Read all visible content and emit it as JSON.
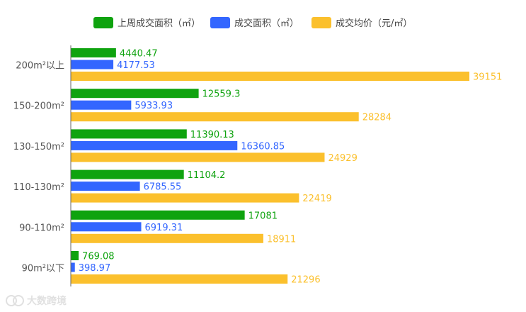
{
  "chart_data": {
    "type": "bar",
    "orientation": "horizontal",
    "categories": [
      "200m²以上",
      "150-200m²",
      "130-150m²",
      "110-130m²",
      "90-110m²",
      "90m²以下"
    ],
    "series": [
      {
        "name": "上周成交面积（㎡）",
        "color": "#0fa30f",
        "values": [
          4440.47,
          12559.3,
          11390.13,
          11104.2,
          17081,
          769.08
        ],
        "labels": [
          "4440.47",
          "12559.3",
          "11390.13",
          "11104.2",
          "17081",
          "769.08"
        ]
      },
      {
        "name": "成交面积（㎡）",
        "color": "#3366ff",
        "values": [
          4177.53,
          5933.93,
          16360.85,
          6785.55,
          6919.31,
          398.97
        ],
        "labels": [
          "4177.53",
          "5933.93",
          "16360.85",
          "6785.55",
          "6919.31",
          "398.97"
        ]
      },
      {
        "name": "成交均价（元/㎡）",
        "color": "#fbc02d",
        "values": [
          39151,
          28284,
          24929,
          22419,
          18911,
          21296
        ],
        "labels": [
          "39151",
          "28284",
          "24929",
          "22419",
          "18911",
          "21296"
        ]
      }
    ],
    "legend_position": "top",
    "grid": false
  },
  "watermark": {
    "text": "大数跨境",
    "icon": "brand-logo-icon"
  }
}
